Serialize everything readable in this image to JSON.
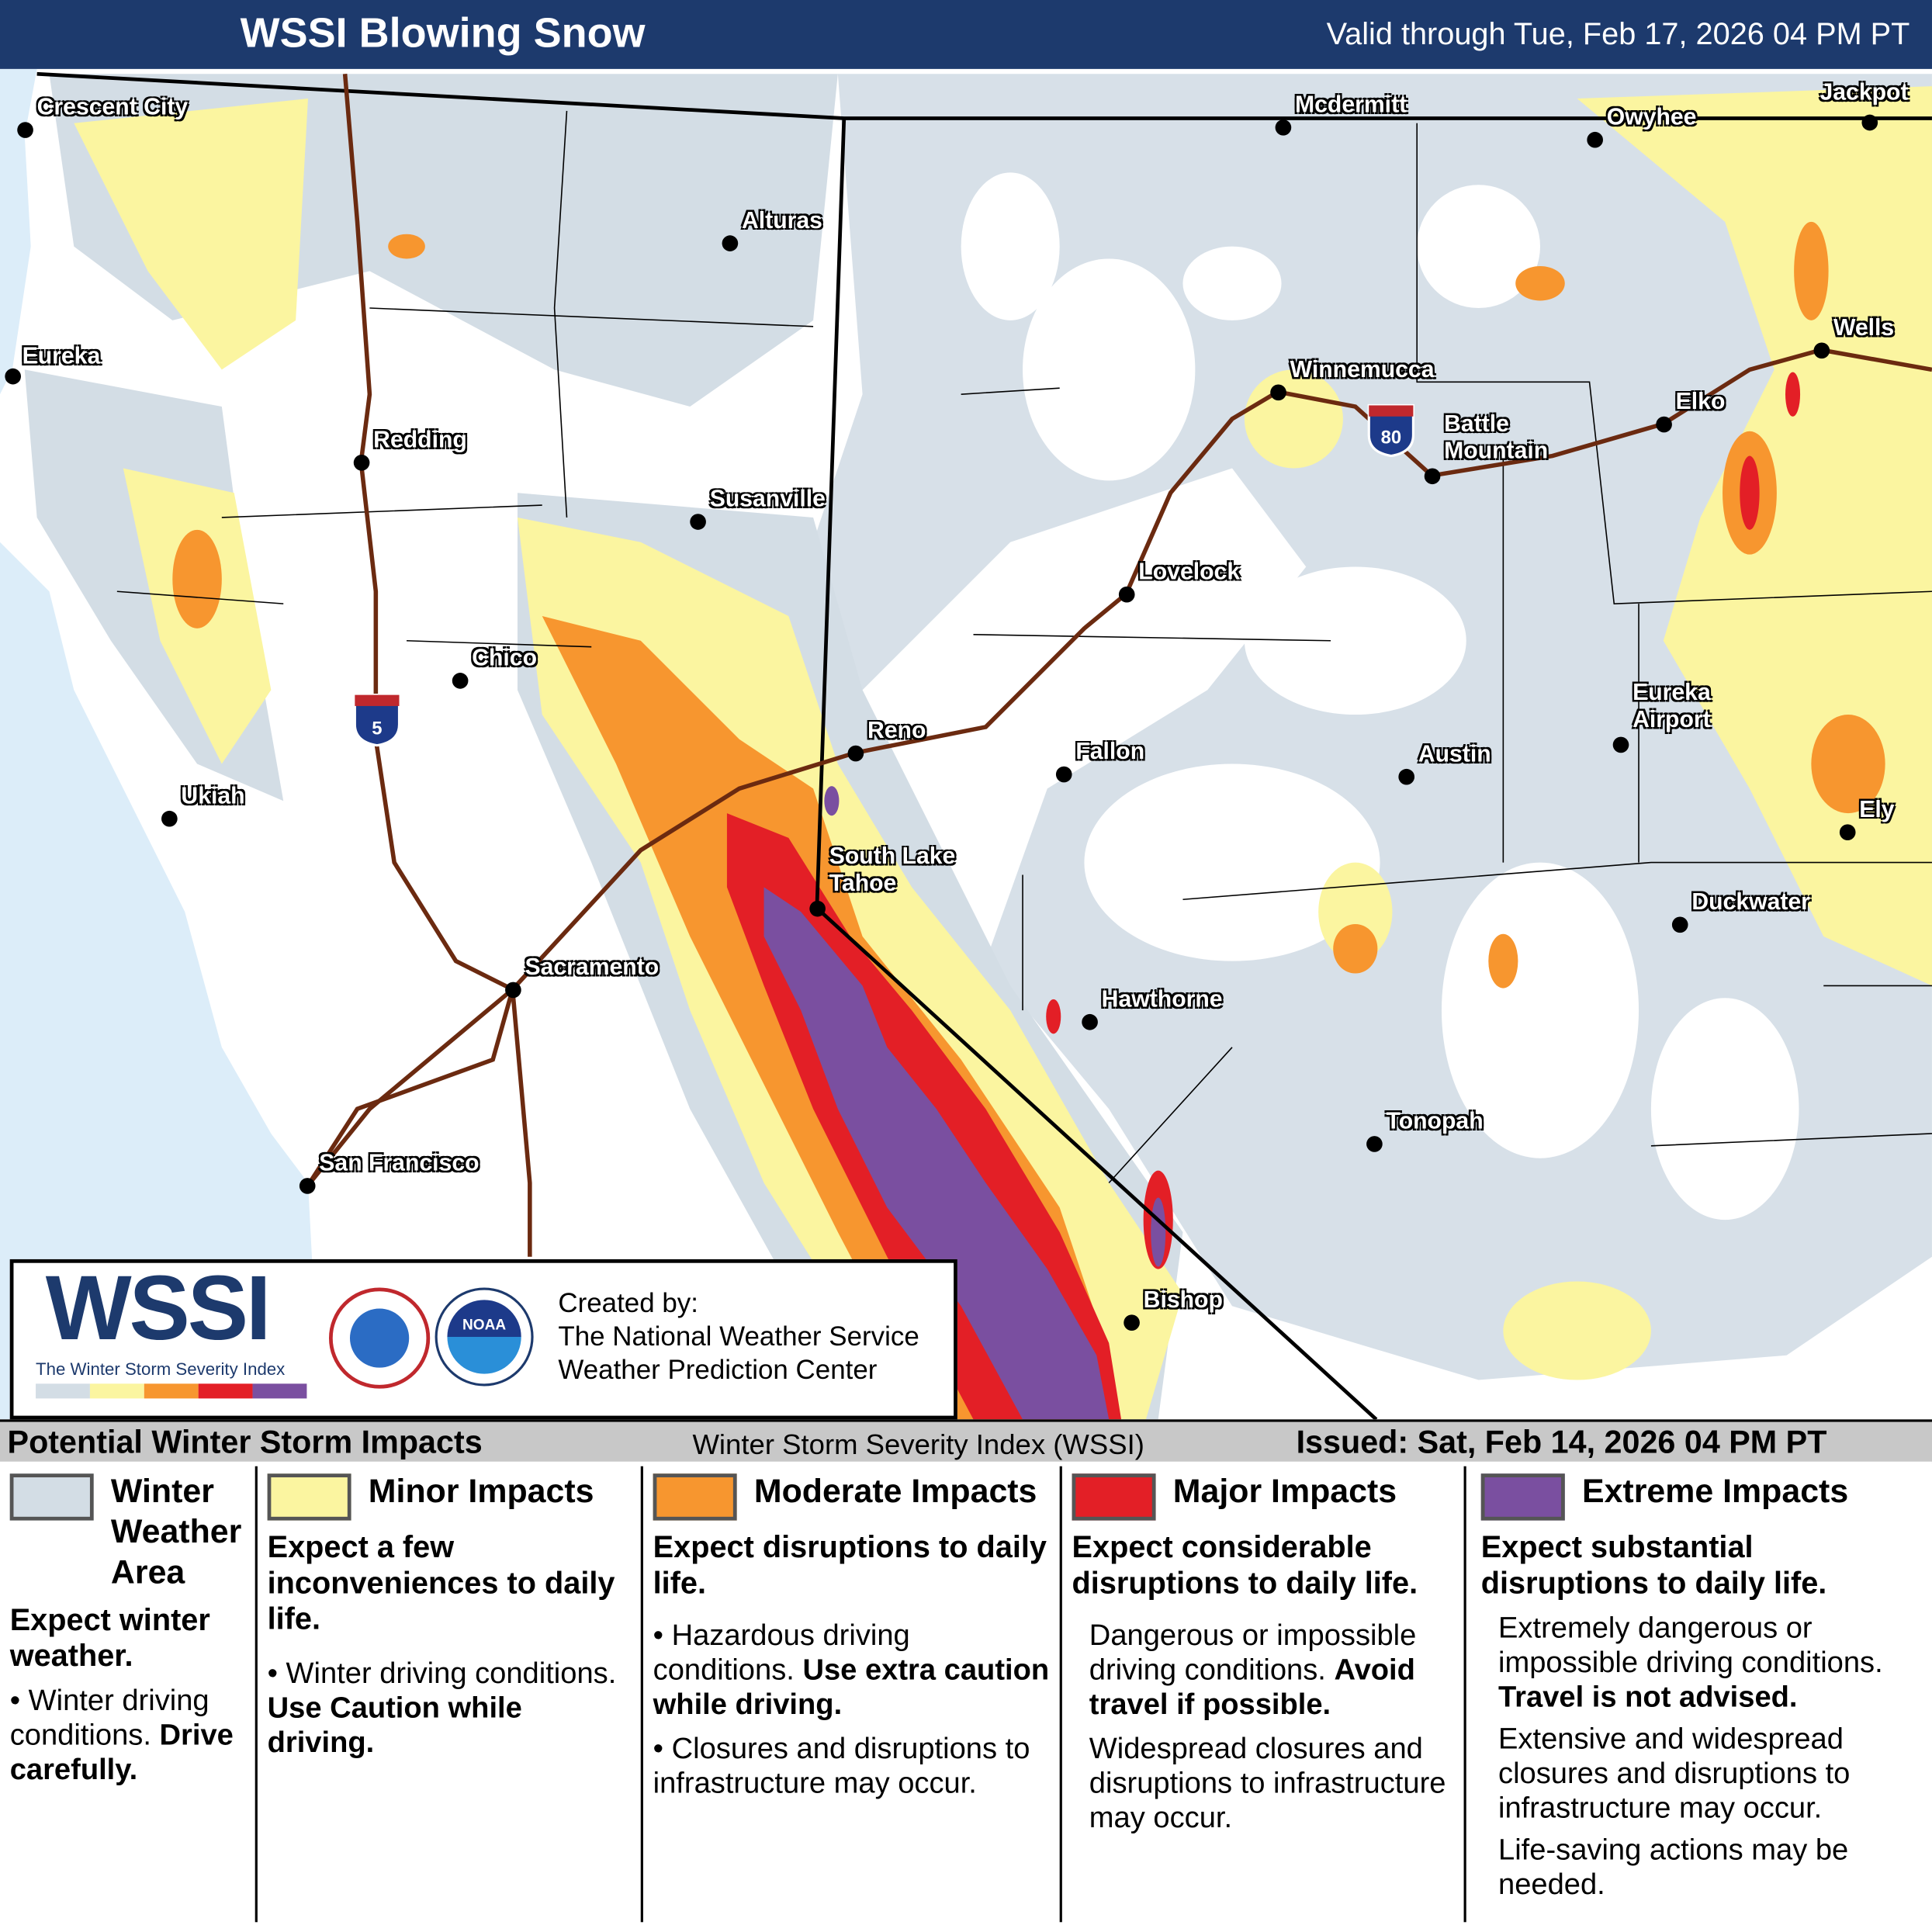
{
  "header": {
    "title": "WSSI Blowing Snow",
    "valid": "Valid through Tue, Feb 17, 2026 04 PM PT"
  },
  "colors": {
    "winter_weather_area": "#d3dde5",
    "minor": "#fbf5a0",
    "moderate": "#f7962f",
    "major": "#e31f26",
    "extreme": "#7a4fa0",
    "ocean": "#dcedf9",
    "header": "#1d3a6d"
  },
  "highways": [
    {
      "label": "5",
      "type": "interstate"
    },
    {
      "label": "80",
      "type": "interstate"
    }
  ],
  "cities": [
    {
      "name": "Crescent City"
    },
    {
      "name": "Eureka"
    },
    {
      "name": "Alturas"
    },
    {
      "name": "Redding"
    },
    {
      "name": "Susanville"
    },
    {
      "name": "Chico"
    },
    {
      "name": "Ukiah"
    },
    {
      "name": "Reno"
    },
    {
      "name": "South Lake\nTahoe"
    },
    {
      "name": "Sacramento"
    },
    {
      "name": "San Francisco"
    },
    {
      "name": "Mcdermitt"
    },
    {
      "name": "Owyhee"
    },
    {
      "name": "Jackpot"
    },
    {
      "name": "Wells"
    },
    {
      "name": "Winnemucca"
    },
    {
      "name": "Battle\nMountain"
    },
    {
      "name": "Elko"
    },
    {
      "name": "Lovelock"
    },
    {
      "name": "Fallon"
    },
    {
      "name": "Austin"
    },
    {
      "name": "Eureka\nAirport"
    },
    {
      "name": "Ely"
    },
    {
      "name": "Duckwater"
    },
    {
      "name": "Hawthorne"
    },
    {
      "name": "Tonopah"
    },
    {
      "name": "Bishop"
    }
  ],
  "logo": {
    "wssi": "WSSI",
    "tagline": "The Winter Storm Severity Index",
    "nws_seal": "NATIONAL WEATHER SERVICE",
    "noaa_seal": "NOAA",
    "created_by": "Created by:",
    "org1": "The National Weather Service",
    "org2": "Weather Prediction Center"
  },
  "bar": {
    "left": "Potential Winter Storm Impacts",
    "center": "Winter Storm Severity Index (WSSI)",
    "right": "Issued: Sat, Feb 14, 2026 04 PM PT"
  },
  "legend": [
    {
      "title": "Winter Weather Area",
      "summary": "Expect winter weather.",
      "b1": "Winter driving conditions.",
      "b1_bold": "Drive carefully."
    },
    {
      "title": "Minor Impacts",
      "summary": "Expect a few inconveniences to daily life.",
      "b1": "Winter driving conditions.",
      "b1_bold": "Use Caution while driving."
    },
    {
      "title": "Moderate Impacts",
      "summary": "Expect disruptions to daily life.",
      "b1": "Hazardous driving conditions.",
      "b1_bold": "Use extra caution while driving.",
      "b2": "Closures and disruptions to infrastructure may occur."
    },
    {
      "title": "Major Impacts",
      "summary": "Expect considerable disruptions to daily life.",
      "b1": "Dangerous or impossible driving conditions.",
      "b1_bold": "Avoid travel if possible.",
      "b2": "Widespread closures and disruptions to infrastructure may occur."
    },
    {
      "title": "Extreme Impacts",
      "summary": "Expect substantial disruptions to daily life.",
      "b1": "Extremely dangerous or impossible driving conditions.",
      "b1_bold": "Travel is not advised.",
      "b2": "Extensive and widespread closures and disruptions to infrastructure may occur.",
      "b3": "Life-saving actions may be needed."
    }
  ]
}
